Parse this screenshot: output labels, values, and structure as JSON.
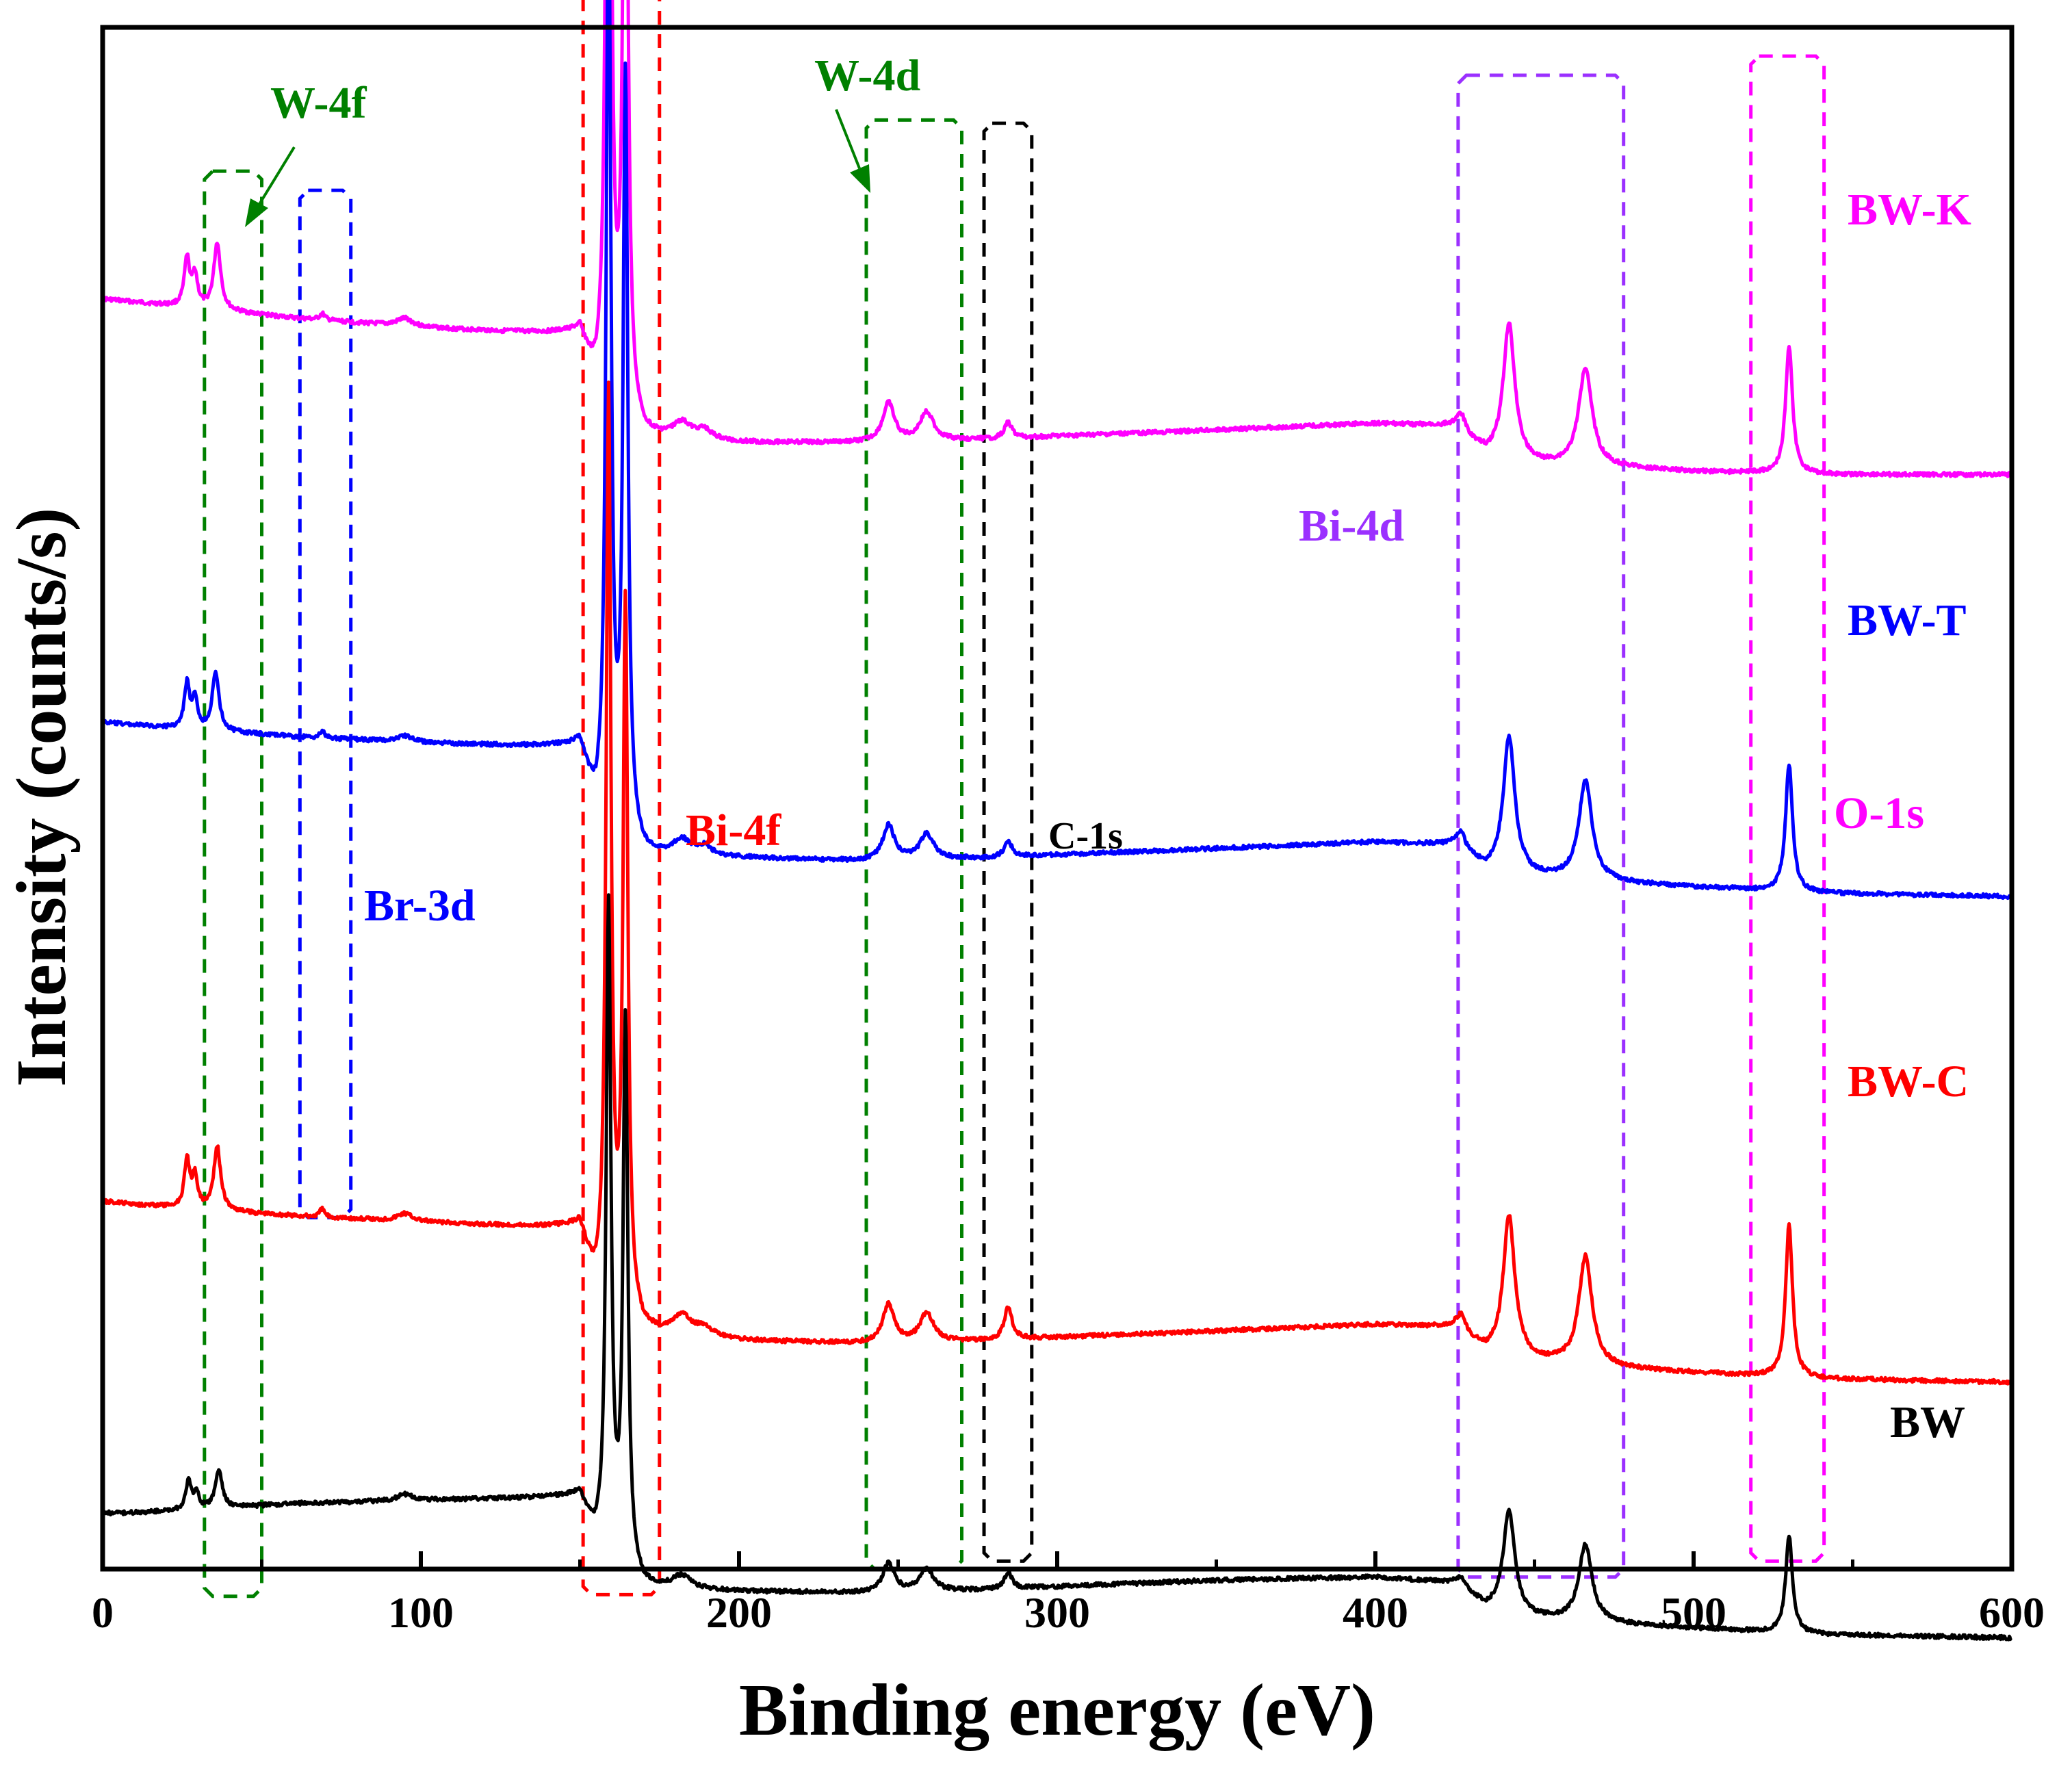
{
  "chart_data": {
    "type": "line",
    "title": "",
    "xlabel": "Binding energy (eV)",
    "ylabel": "Intensity (counts/s)",
    "xlim": [
      0,
      600
    ],
    "x_ticks": [
      0,
      100,
      200,
      300,
      400,
      500,
      600
    ],
    "y_ticks": [],
    "grid": false,
    "series": [
      {
        "name": "BW-K",
        "color": "#FF00FF",
        "baseline": [
          [
            0,
            0.24
          ],
          [
            30,
            0.246
          ],
          [
            60,
            0.252
          ],
          [
            100,
            0.258
          ],
          [
            150,
            0.263
          ],
          [
            155,
            0.3
          ],
          [
            170,
            0.328
          ],
          [
            200,
            0.33
          ],
          [
            240,
            0.33
          ],
          [
            280,
            0.328
          ],
          [
            300,
            0.326
          ],
          [
            350,
            0.322
          ],
          [
            400,
            0.318
          ],
          [
            425,
            0.32
          ],
          [
            435,
            0.338
          ],
          [
            450,
            0.344
          ],
          [
            480,
            0.346
          ],
          [
            500,
            0.348
          ],
          [
            540,
            0.35
          ],
          [
            600,
            0.35
          ]
        ],
        "peaks": [
          {
            "center": 26.5,
            "height": 0.03,
            "width": 1.0
          },
          {
            "center": 29.0,
            "height": 0.02,
            "width": 1.0
          },
          {
            "center": 36.0,
            "height": 0.042,
            "width": 1.3
          },
          {
            "center": 69.0,
            "height": 0.004,
            "width": 1.0
          },
          {
            "center": 95.0,
            "height": 0.005,
            "width": 3.0
          },
          {
            "center": 159.0,
            "height": 0.635,
            "width": 0.9
          },
          {
            "center": 164.3,
            "height": 0.485,
            "width": 0.9
          },
          {
            "center": 182.0,
            "height": 0.01,
            "width": 3.5
          },
          {
            "center": 189.0,
            "height": 0.006,
            "width": 3.0
          },
          {
            "center": 247.0,
            "height": 0.024,
            "width": 2.2
          },
          {
            "center": 259.0,
            "height": 0.018,
            "width": 2.6
          },
          {
            "center": 284.6,
            "height": 0.01,
            "width": 1.5
          },
          {
            "center": 427.0,
            "height": 0.01,
            "width": 1.5
          },
          {
            "center": 442.0,
            "height": 0.085,
            "width": 2.2
          },
          {
            "center": 466.0,
            "height": 0.062,
            "width": 2.5
          },
          {
            "center": 530.0,
            "height": 0.08,
            "width": 1.3
          }
        ]
      },
      {
        "name": "BW-T",
        "color": "#0000FF",
        "baseline": [
          [
            0,
            0.505
          ],
          [
            30,
            0.51
          ],
          [
            60,
            0.514
          ],
          [
            100,
            0.518
          ],
          [
            150,
            0.521
          ],
          [
            155,
            0.565
          ],
          [
            170,
            0.59
          ],
          [
            200,
            0.59
          ],
          [
            240,
            0.592
          ],
          [
            280,
            0.59
          ],
          [
            300,
            0.588
          ],
          [
            350,
            0.584
          ],
          [
            400,
            0.58
          ],
          [
            425,
            0.582
          ],
          [
            435,
            0.598
          ],
          [
            450,
            0.602
          ],
          [
            480,
            0.606
          ],
          [
            500,
            0.608
          ],
          [
            540,
            0.612
          ],
          [
            600,
            0.614
          ]
        ],
        "peaks": [
          {
            "center": 26.5,
            "height": 0.028,
            "width": 1.0
          },
          {
            "center": 29.0,
            "height": 0.018,
            "width": 1.0
          },
          {
            "center": 35.5,
            "height": 0.036,
            "width": 1.3
          },
          {
            "center": 69.0,
            "height": 0.004,
            "width": 1.0
          },
          {
            "center": 95.0,
            "height": 0.004,
            "width": 3.0
          },
          {
            "center": 159.0,
            "height": 0.59,
            "width": 0.9
          },
          {
            "center": 164.3,
            "height": 0.472,
            "width": 0.9
          },
          {
            "center": 182.0,
            "height": 0.01,
            "width": 3.5
          },
          {
            "center": 189.0,
            "height": 0.006,
            "width": 3.0
          },
          {
            "center": 247.0,
            "height": 0.022,
            "width": 2.2
          },
          {
            "center": 259.0,
            "height": 0.016,
            "width": 2.6
          },
          {
            "center": 284.6,
            "height": 0.01,
            "width": 1.5
          },
          {
            "center": 427.0,
            "height": 0.01,
            "width": 1.5
          },
          {
            "center": 442.0,
            "height": 0.085,
            "width": 2.2
          },
          {
            "center": 466.0,
            "height": 0.062,
            "width": 2.5
          },
          {
            "center": 530.0,
            "height": 0.08,
            "width": 1.3
          }
        ]
      },
      {
        "name": "BW-C",
        "color": "#FF0000",
        "baseline": [
          [
            0,
            0.805
          ],
          [
            30,
            0.81
          ],
          [
            60,
            0.814
          ],
          [
            100,
            0.818
          ],
          [
            150,
            0.822
          ],
          [
            155,
            0.865
          ],
          [
            170,
            0.888
          ],
          [
            200,
            0.892
          ],
          [
            240,
            0.894
          ],
          [
            280,
            0.892
          ],
          [
            300,
            0.89
          ],
          [
            350,
            0.886
          ],
          [
            400,
            0.882
          ],
          [
            425,
            0.884
          ],
          [
            435,
            0.9
          ],
          [
            450,
            0.905
          ],
          [
            480,
            0.91
          ],
          [
            500,
            0.912
          ],
          [
            540,
            0.916
          ],
          [
            600,
            0.918
          ]
        ],
        "peaks": [
          {
            "center": 26.5,
            "height": 0.03,
            "width": 1.0
          },
          {
            "center": 29.0,
            "height": 0.02,
            "width": 1.0
          },
          {
            "center": 36.0,
            "height": 0.04,
            "width": 1.3
          },
          {
            "center": 69.0,
            "height": 0.005,
            "width": 1.0
          },
          {
            "center": 95.0,
            "height": 0.005,
            "width": 3.0
          },
          {
            "center": 159.0,
            "height": 0.565,
            "width": 0.9
          },
          {
            "center": 164.3,
            "height": 0.442,
            "width": 0.9
          },
          {
            "center": 182.0,
            "height": 0.012,
            "width": 3.5
          },
          {
            "center": 189.0,
            "height": 0.006,
            "width": 3.0
          },
          {
            "center": 247.0,
            "height": 0.024,
            "width": 2.2
          },
          {
            "center": 259.0,
            "height": 0.018,
            "width": 2.6
          },
          {
            "center": 284.6,
            "height": 0.02,
            "width": 1.5
          },
          {
            "center": 427.0,
            "height": 0.01,
            "width": 1.5
          },
          {
            "center": 442.0,
            "height": 0.088,
            "width": 2.2
          },
          {
            "center": 466.0,
            "height": 0.068,
            "width": 2.5
          },
          {
            "center": 530.0,
            "height": 0.095,
            "width": 1.3
          }
        ]
      },
      {
        "name": "BW",
        "color": "#000000",
        "baseline": [
          [
            0,
            1.0
          ],
          [
            5,
            1.0
          ],
          [
            30,
            0.998
          ],
          [
            60,
            0.994
          ],
          [
            100,
            0.992
          ],
          [
            150,
            0.99
          ],
          [
            155,
            1.02
          ],
          [
            170,
            1.047
          ],
          [
            200,
            1.049
          ],
          [
            240,
            1.05
          ],
          [
            280,
            1.048
          ],
          [
            300,
            1.046
          ],
          [
            350,
            1.042
          ],
          [
            400,
            1.04
          ],
          [
            425,
            1.044
          ],
          [
            435,
            1.06
          ],
          [
            450,
            1.066
          ],
          [
            480,
            1.07
          ],
          [
            500,
            1.072
          ],
          [
            540,
            1.076
          ],
          [
            600,
            1.078
          ]
        ],
        "peaks": [
          {
            "center": 27.0,
            "height": 0.018,
            "width": 1.0
          },
          {
            "center": 29.5,
            "height": 0.01,
            "width": 1.0
          },
          {
            "center": 36.5,
            "height": 0.024,
            "width": 1.3
          },
          {
            "center": 95.0,
            "height": 0.004,
            "width": 3.0
          },
          {
            "center": 159.0,
            "height": 0.405,
            "width": 0.9
          },
          {
            "center": 164.3,
            "height": 0.34,
            "width": 0.9
          },
          {
            "center": 182.0,
            "height": 0.008,
            "width": 3.5
          },
          {
            "center": 247.0,
            "height": 0.018,
            "width": 2.2
          },
          {
            "center": 259.0,
            "height": 0.014,
            "width": 2.6
          },
          {
            "center": 284.6,
            "height": 0.01,
            "width": 1.5
          },
          {
            "center": 427.0,
            "height": 0.006,
            "width": 1.5
          },
          {
            "center": 442.0,
            "height": 0.064,
            "width": 2.2
          },
          {
            "center": 466.0,
            "height": 0.048,
            "width": 2.5
          },
          {
            "center": 530.0,
            "height": 0.06,
            "width": 1.3
          }
        ]
      }
    ],
    "series_labels": [
      {
        "text": "BW-K",
        "color": "#FF00FF"
      },
      {
        "text": "BW-T",
        "color": "#0000FF"
      },
      {
        "text": "BW-C",
        "color": "#FF0000"
      },
      {
        "text": "BW",
        "color": "#000000"
      }
    ],
    "region_boxes": [
      {
        "label": "W-4f",
        "color": "#008000",
        "x_range": [
          32,
          50
        ]
      },
      {
        "label": "Br-3d",
        "color": "#0000FF",
        "x_range": [
          62,
          78
        ]
      },
      {
        "label": "Bi-4f",
        "color": "#FF0000",
        "x_range": [
          151,
          175
        ]
      },
      {
        "label": "W-4d",
        "color": "#008000",
        "x_range": [
          240,
          270
        ]
      },
      {
        "label": "C-1s",
        "color": "#000000",
        "x_range": [
          277,
          292
        ]
      },
      {
        "label": "Bi-4d",
        "color": "#9B30FF",
        "x_range": [
          426,
          478
        ]
      },
      {
        "label": "O-1s",
        "color": "#FF00FF",
        "x_range": [
          518,
          541
        ]
      }
    ],
    "annotations": [
      {
        "text": "W-4f",
        "color": "#008000",
        "arrow": true
      },
      {
        "text": "W-4d",
        "color": "#008000",
        "arrow": true
      },
      {
        "text": "Br-3d",
        "color": "#0000FF"
      },
      {
        "text": "Bi-4f",
        "color": "#FF0000"
      },
      {
        "text": "C-1s",
        "color": "#000000"
      },
      {
        "text": "Bi-4d",
        "color": "#9B30FF"
      },
      {
        "text": "O-1s",
        "color": "#FF00FF"
      }
    ]
  }
}
